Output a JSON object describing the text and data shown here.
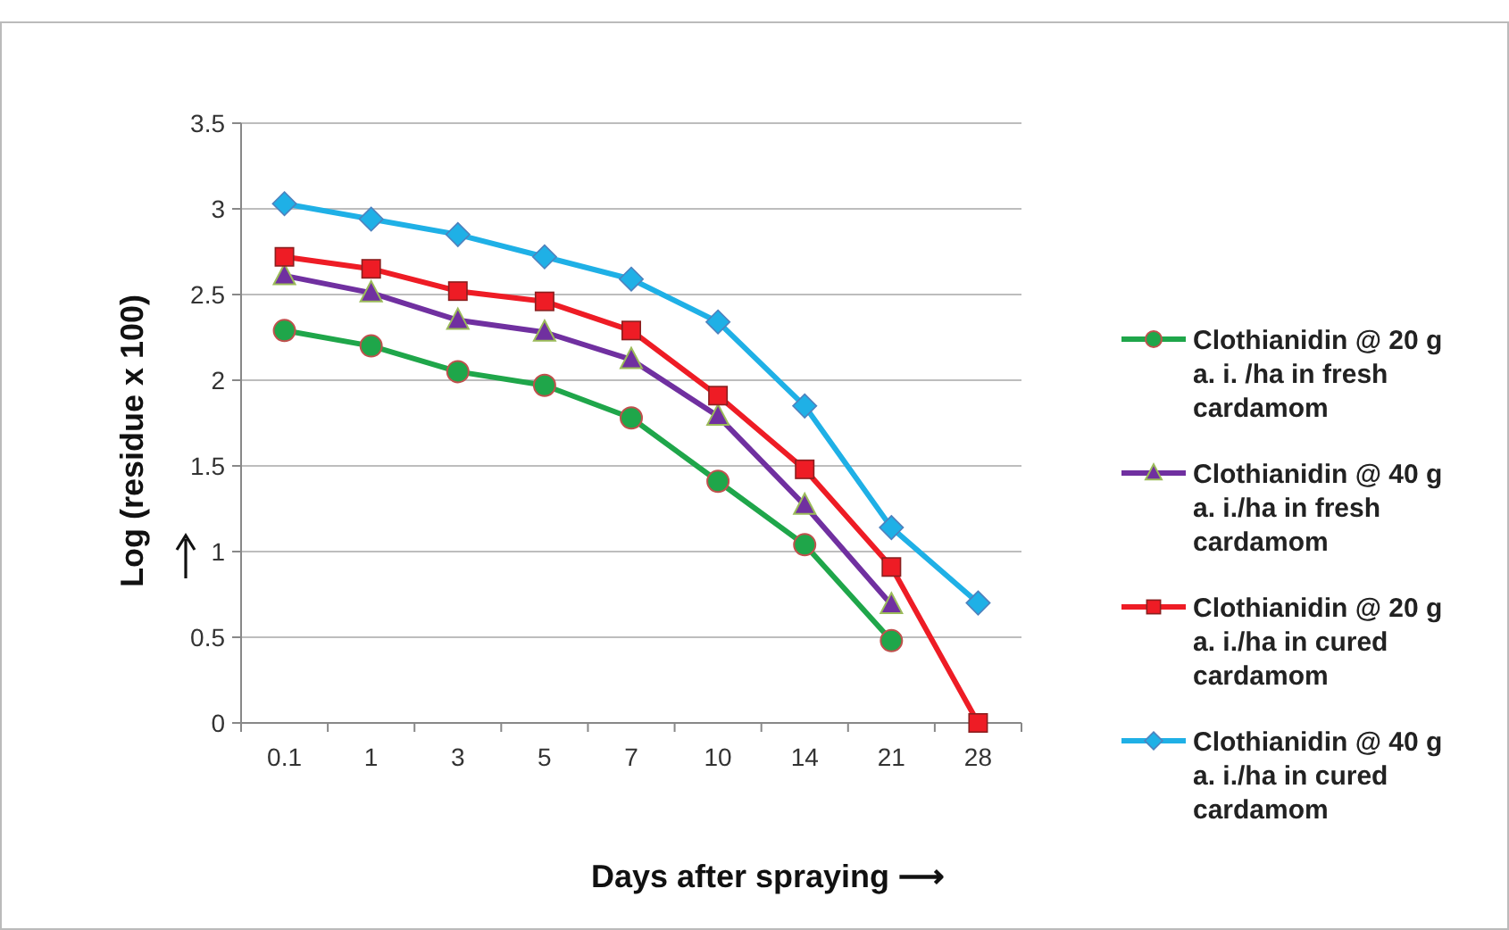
{
  "chart_data": {
    "type": "line",
    "xlabel": "Days after spraying  ⟶",
    "ylabel": "Log (residue x 100)",
    "categories": [
      "0.1",
      "1",
      "3",
      "5",
      "7",
      "10",
      "14",
      "21",
      "28"
    ],
    "ylim": [
      0,
      3.5
    ],
    "yticks": [
      0,
      0.5,
      1,
      1.5,
      2,
      2.5,
      3,
      3.5
    ],
    "grid": "y",
    "legend": "right",
    "line_style": "solid",
    "series": [
      {
        "name": "Clothianidin @ 20 g a. i. /ha in fresh cardamom",
        "color": "#1fa64a",
        "marker": "circle",
        "values": [
          2.29,
          2.2,
          2.05,
          1.97,
          1.78,
          1.41,
          1.04,
          0.48,
          null
        ]
      },
      {
        "name": "Clothianidin @ 40 g a. i./ha in fresh cardamom",
        "color": "#7030a0",
        "marker": "triangle",
        "values": [
          2.61,
          2.51,
          2.35,
          2.28,
          2.12,
          1.79,
          1.27,
          0.69,
          null
        ]
      },
      {
        "name": "Clothianidin @ 20 g a. i./ha in cured cardamom",
        "color": "#ee1c25",
        "marker": "square",
        "values": [
          2.72,
          2.65,
          2.52,
          2.46,
          2.29,
          1.91,
          1.48,
          0.91,
          0
        ]
      },
      {
        "name": "Clothianidin @ 40 g a. i./ha in cured cardamom",
        "color": "#1fb0e6",
        "marker": "diamond",
        "values": [
          3.03,
          2.94,
          2.85,
          2.72,
          2.59,
          2.34,
          1.85,
          1.14,
          0.7
        ]
      }
    ]
  }
}
